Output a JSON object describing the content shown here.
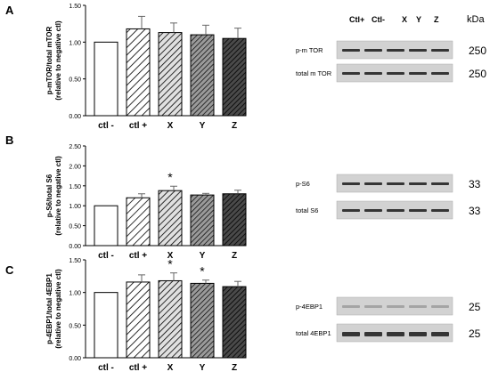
{
  "colors": {
    "axis": "#000000",
    "bar_stroke": "#000000",
    "hatch": "#000000",
    "blot_band": "#1a1a1a",
    "blot_bg": "#cfcfcf"
  },
  "chart_data": [
    {
      "panel": "A",
      "type": "bar",
      "ylabel": "p-mTOR/total mTOR (relative to negative ctl)",
      "ylim": [
        0,
        1.5
      ],
      "yticks": [
        "0.00",
        "0.50",
        "1.00",
        "1.50"
      ],
      "categories": [
        "ctl -",
        "ctl +",
        "X",
        "Y",
        "Z"
      ],
      "values": [
        1.0,
        1.18,
        1.13,
        1.1,
        1.05
      ],
      "errors": [
        0,
        0.17,
        0.13,
        0.13,
        0.14
      ],
      "significance": [
        "",
        "",
        "",
        "",
        ""
      ],
      "fills": [
        "white",
        "hatch-sparse",
        "hatch-medium",
        "hatch-dense",
        "hatch-darkest"
      ]
    },
    {
      "panel": "B",
      "type": "bar",
      "ylabel": "p-S6/total S6 (relative to negative ctl)",
      "ylim": [
        0,
        2.5
      ],
      "yticks": [
        "0.00",
        "0.50",
        "1.00",
        "1.50",
        "2.00",
        "2.50"
      ],
      "categories": [
        "ctl -",
        "ctl +",
        "X",
        "Y",
        "Z"
      ],
      "values": [
        1.0,
        1.2,
        1.38,
        1.27,
        1.3
      ],
      "errors": [
        0,
        0.1,
        0.11,
        0.04,
        0.09
      ],
      "significance": [
        "",
        "",
        "*",
        "",
        ""
      ],
      "fills": [
        "white",
        "hatch-sparse",
        "hatch-medium",
        "hatch-dense",
        "hatch-darkest"
      ]
    },
    {
      "panel": "C",
      "type": "bar",
      "ylabel": "p-4EBP1/total 4EBP1 (relative to negative ctl)",
      "ylim": [
        0,
        1.5
      ],
      "yticks": [
        "0.00",
        "0.50",
        "1.00",
        "1.50"
      ],
      "categories": [
        "ctl -",
        "ctl +",
        "X",
        "Y",
        "Z"
      ],
      "values": [
        1.0,
        1.16,
        1.18,
        1.14,
        1.09
      ],
      "errors": [
        0,
        0.11,
        0.12,
        0.05,
        0.08
      ],
      "significance": [
        "",
        "",
        "*",
        "*",
        ""
      ],
      "fills": [
        "white",
        "hatch-sparse",
        "hatch-medium",
        "hatch-dense",
        "hatch-darkest"
      ]
    }
  ],
  "blots": {
    "lane_labels": [
      "Ctl+",
      "Ctl-",
      "X",
      "Y",
      "Z"
    ],
    "kda_header": "kDa",
    "panels": [
      {
        "rows": [
          {
            "label": "p-m TOR",
            "kda": "250"
          },
          {
            "label": "total m TOR",
            "kda": "250"
          }
        ]
      },
      {
        "rows": [
          {
            "label": "p-S6",
            "kda": "33"
          },
          {
            "label": "total S6",
            "kda": "33"
          }
        ]
      },
      {
        "rows": [
          {
            "label": "p-4EBP1",
            "kda": "25"
          },
          {
            "label": "total 4EBP1",
            "kda": "25"
          }
        ]
      }
    ]
  }
}
